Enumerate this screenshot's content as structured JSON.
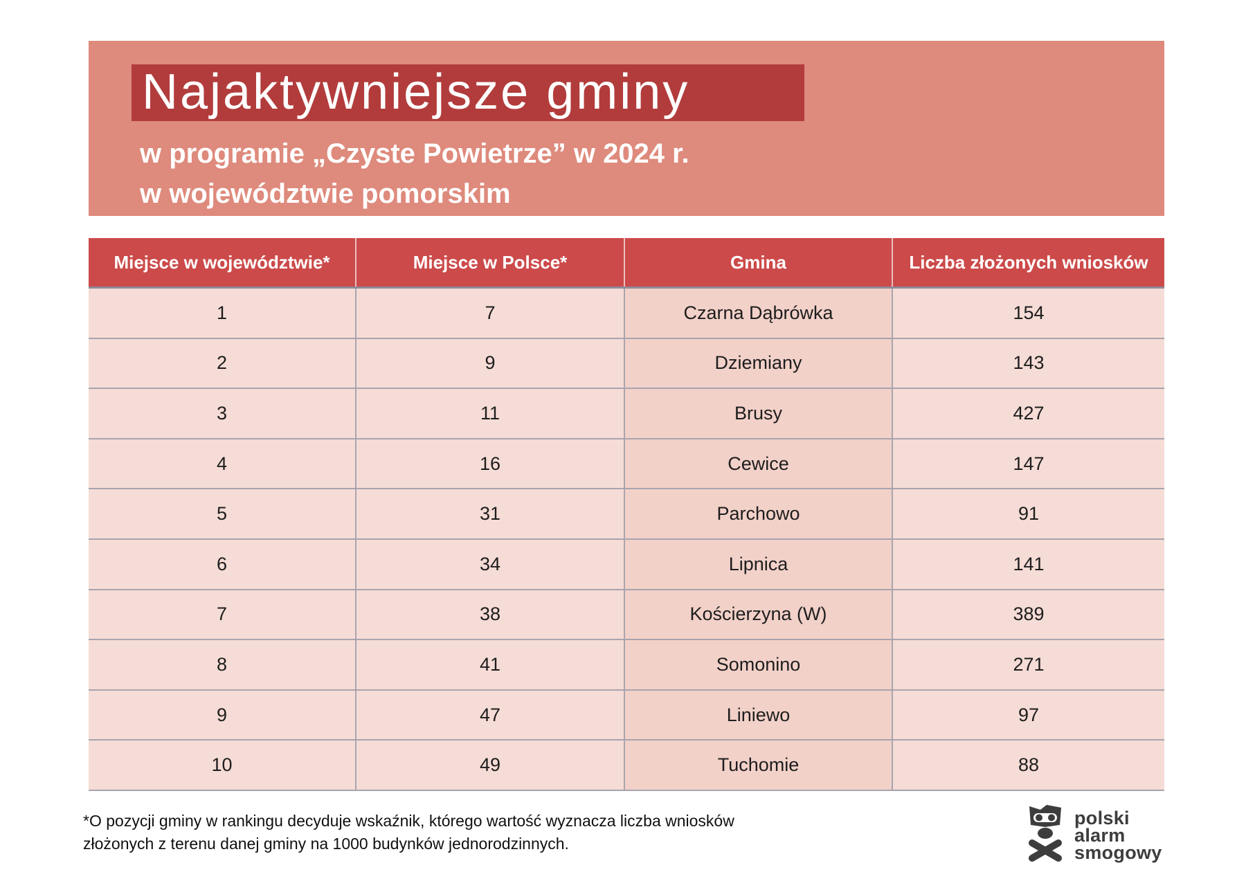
{
  "banner": {
    "title": "Najaktywniejsze gminy",
    "subtitle_lines": [
      "w programie „Czyste Powietrze” w 2024 r.",
      "w województwie pomorskim"
    ]
  },
  "chart_data": {
    "type": "table",
    "title": "Najaktywniejsze gminy w programie „Czyste Powietrze” w 2024 r. w województwie pomorskim",
    "columns": [
      "Miejsce w województwie*",
      "Miejsce w Polsce*",
      "Gmina",
      "Liczba złożonych wniosków"
    ],
    "rows": [
      [
        "1",
        "7",
        "Czarna Dąbrówka",
        "154"
      ],
      [
        "2",
        "9",
        "Dziemiany",
        "143"
      ],
      [
        "3",
        "11",
        "Brusy",
        "427"
      ],
      [
        "4",
        "16",
        "Cewice",
        "147"
      ],
      [
        "5",
        "31",
        "Parchowo",
        "91"
      ],
      [
        "6",
        "34",
        "Lipnica",
        "141"
      ],
      [
        "7",
        "38",
        "Kościerzyna (W)",
        "389"
      ],
      [
        "8",
        "41",
        "Somonino",
        "271"
      ],
      [
        "9",
        "47",
        "Liniewo",
        "97"
      ],
      [
        "10",
        "49",
        "Tuchomie",
        "88"
      ]
    ]
  },
  "footnote": {
    "line1": "*O pozycji gminy w rankingu decyduje wskaźnik, którego wartość wyznacza liczba wniosków",
    "line2": "złożonych z terenu danej gminy na 1000 budynków jednorodzinnych."
  },
  "logo": {
    "lines": [
      "polski",
      "alarm",
      "smogowy"
    ],
    "icon": "skull-gas-mask-crossbones-icon"
  },
  "colors": {
    "banner_bg": "#de8a7c",
    "title_box_bg": "#b23c3c",
    "header_bg": "#cc4a4a",
    "cell_light": "#f6dcd6",
    "cell_dark": "#f2d1c9",
    "grid_line": "#a8a4ae",
    "header_divider": "#8f8b99",
    "text_dark": "#1d1d1d",
    "logo_gray": "#3d3d3d"
  }
}
